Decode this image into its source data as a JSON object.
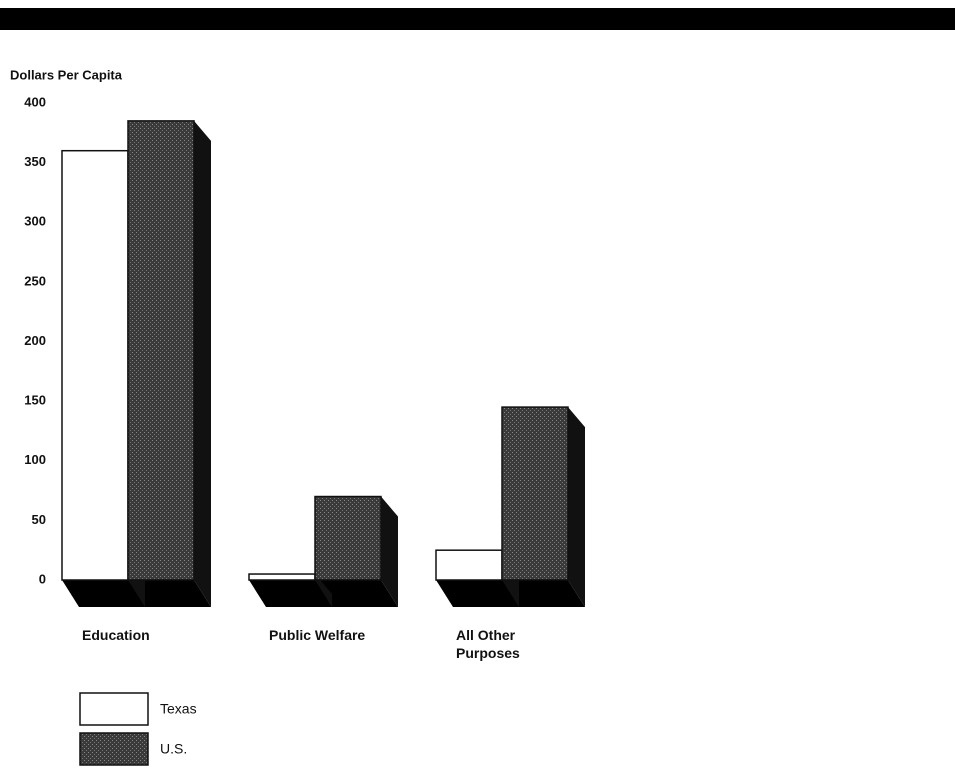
{
  "chart_data": {
    "type": "bar3d",
    "y_label": "Dollars Per Capita",
    "categories": [
      "Education",
      "Public Welfare",
      "All Other Purposes"
    ],
    "series": [
      {
        "name": "Texas",
        "color": "#ffffff",
        "values": [
          360,
          5,
          25
        ]
      },
      {
        "name": "U.S.",
        "color": "#3a3a3a",
        "values": [
          385,
          70,
          145
        ]
      }
    ],
    "ylim": [
      0,
      400
    ],
    "yticks": [
      0,
      50,
      100,
      150,
      200,
      250,
      300,
      350,
      400
    ]
  }
}
